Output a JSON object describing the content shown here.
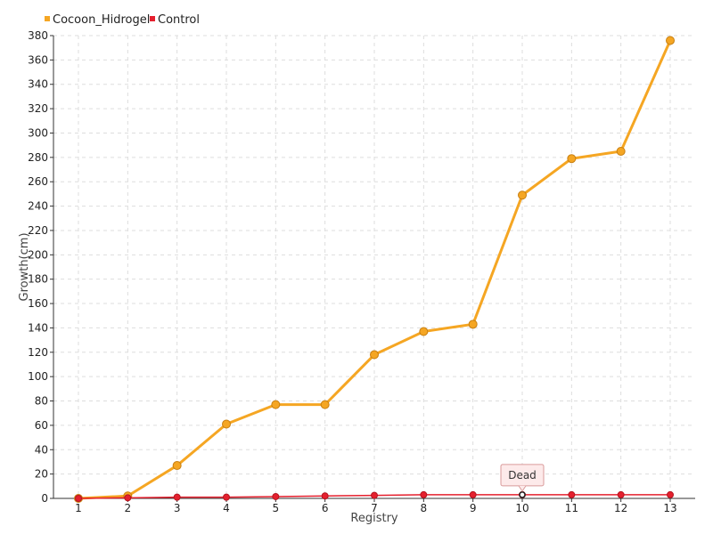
{
  "chart_data": {
    "type": "line",
    "title": "",
    "xlabel": "Registry",
    "ylabel": "Growth(cm)",
    "x": [
      1,
      2,
      3,
      4,
      5,
      6,
      7,
      8,
      9,
      10,
      11,
      12,
      13
    ],
    "x_tick_labels": [
      "1",
      "2",
      "3",
      "4",
      "5",
      "6",
      "7",
      "8",
      "9",
      "10",
      "11",
      "12",
      "13"
    ],
    "ylim": [
      0,
      380
    ],
    "y_ticks": [
      0,
      20,
      40,
      60,
      80,
      100,
      120,
      140,
      160,
      180,
      200,
      220,
      240,
      260,
      280,
      300,
      320,
      340,
      360,
      380
    ],
    "grid": true,
    "legend_position": "top-left",
    "series": [
      {
        "name": "Cocoon_Hidrogel",
        "color": "#f5a623",
        "values": [
          0,
          2,
          27,
          61,
          77,
          77,
          118,
          137,
          143,
          249,
          279,
          285,
          376
        ]
      },
      {
        "name": "Control",
        "color": "#e5202e",
        "values": [
          0,
          0.5,
          1,
          1,
          1.5,
          2,
          2.5,
          3,
          3,
          3,
          3,
          3,
          3
        ]
      }
    ],
    "annotations": [
      {
        "text": "Dead",
        "series": "Control",
        "x": 10,
        "y": 3
      }
    ]
  }
}
